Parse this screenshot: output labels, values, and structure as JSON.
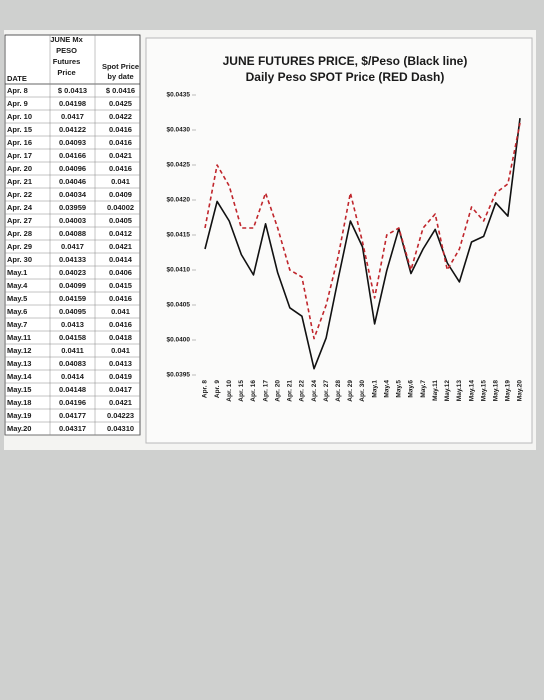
{
  "table": {
    "header": {
      "futures": [
        "JUNE Mx",
        "PESO",
        "Futures",
        "Price"
      ],
      "spot": [
        "Spot Price",
        "by date"
      ],
      "date": "DATE"
    },
    "rows": [
      [
        "Apr. 8",
        "$ 0.0413",
        "$ 0.0416"
      ],
      [
        "Apr. 9",
        "0.04198",
        "0.0425"
      ],
      [
        "Apr. 10",
        "0.0417",
        "0.0422"
      ],
      [
        "Apr. 15",
        "0.04122",
        "0.0416"
      ],
      [
        "Apr. 16",
        "0.04093",
        "0.0416"
      ],
      [
        "Apr. 17",
        "0.04166",
        "0.0421"
      ],
      [
        "Apr. 20",
        "0.04096",
        "0.0416"
      ],
      [
        "Apr. 21",
        "0.04046",
        "0.041"
      ],
      [
        "Apr. 22",
        "0.04034",
        "0.0409"
      ],
      [
        "Apr. 24",
        "0.03959",
        "0.04002"
      ],
      [
        "Apr. 27",
        "0.04003",
        "0.0405"
      ],
      [
        "Apr. 28",
        "0.04088",
        "0.0412"
      ],
      [
        "Apr. 29",
        "0.0417",
        "0.0421"
      ],
      [
        "Apr. 30",
        "0.04133",
        "0.0414"
      ],
      [
        "May.1",
        "0.04023",
        "0.0406"
      ],
      [
        "May.4",
        "0.04099",
        "0.0415"
      ],
      [
        "May.5",
        "0.04159",
        "0.0416"
      ],
      [
        "May.6",
        "0.04095",
        "0.041"
      ],
      [
        "May.7",
        "0.0413",
        "0.0416"
      ],
      [
        "May.11",
        "0.04158",
        "0.0418"
      ],
      [
        "May.12",
        "0.0411",
        "0.041"
      ],
      [
        "May.13",
        "0.04083",
        "0.0413"
      ],
      [
        "May.14",
        "0.0414",
        "0.0419"
      ],
      [
        "May.15",
        "0.04148",
        "0.0417"
      ],
      [
        "May.18",
        "0.04196",
        "0.0421"
      ],
      [
        "May.19",
        "0.04177",
        "0.04223"
      ],
      [
        "May.20",
        "0.04317",
        "0.04310"
      ]
    ]
  },
  "chart_data": {
    "type": "line",
    "title": "JUNE FUTURES PRICE, $/Peso (Black line)",
    "subtitle": "Daily Peso SPOT Price (RED Dash)",
    "categories": [
      "Apr. 8",
      "Apr. 9",
      "Apr. 10",
      "Apr. 15",
      "Apr. 16",
      "Apr. 17",
      "Apr. 20",
      "Apr. 21",
      "Apr. 22",
      "Apr. 24",
      "Apr. 27",
      "Apr. 28",
      "Apr. 29",
      "Apr. 30",
      "May.1",
      "May.4",
      "May.5",
      "May.6",
      "May.7",
      "May.11",
      "May.12",
      "May.13",
      "May.14",
      "May.15",
      "May.18",
      "May.19",
      "May.20"
    ],
    "series": [
      {
        "color": "#111111",
        "dash": false,
        "values": [
          0.0413,
          0.04198,
          0.0417,
          0.04122,
          0.04093,
          0.04166,
          0.04096,
          0.04046,
          0.04034,
          0.03959,
          0.04003,
          0.04088,
          0.0417,
          0.04133,
          0.04023,
          0.04099,
          0.04159,
          0.04095,
          0.0413,
          0.04158,
          0.0411,
          0.04083,
          0.0414,
          0.04148,
          0.04196,
          0.04177,
          0.04317
        ]
      },
      {
        "color": "#c0262c",
        "dash": true,
        "values": [
          0.0416,
          0.0425,
          0.0422,
          0.0416,
          0.0416,
          0.0421,
          0.0416,
          0.041,
          0.0409,
          0.04002,
          0.0405,
          0.0412,
          0.0421,
          0.0414,
          0.0406,
          0.0415,
          0.0416,
          0.041,
          0.0416,
          0.0418,
          0.041,
          0.0413,
          0.0419,
          0.0417,
          0.0421,
          0.04223,
          0.0431
        ]
      }
    ],
    "ylim": [
      0.0395,
      0.0435
    ],
    "yticks": [
      {
        "value": 0.0395,
        "label": "$0.0395"
      },
      {
        "value": 0.04,
        "label": "$0.0400"
      },
      {
        "value": 0.0405,
        "label": "$0.0405"
      },
      {
        "value": 0.041,
        "label": "$0.0410"
      },
      {
        "value": 0.0415,
        "label": "$0.0415"
      },
      {
        "value": 0.042,
        "label": "$0.0420"
      },
      {
        "value": 0.0425,
        "label": "$0.0425"
      },
      {
        "value": 0.043,
        "label": "$0.0430"
      },
      {
        "value": 0.0435,
        "label": "$0.0435"
      }
    ]
  }
}
